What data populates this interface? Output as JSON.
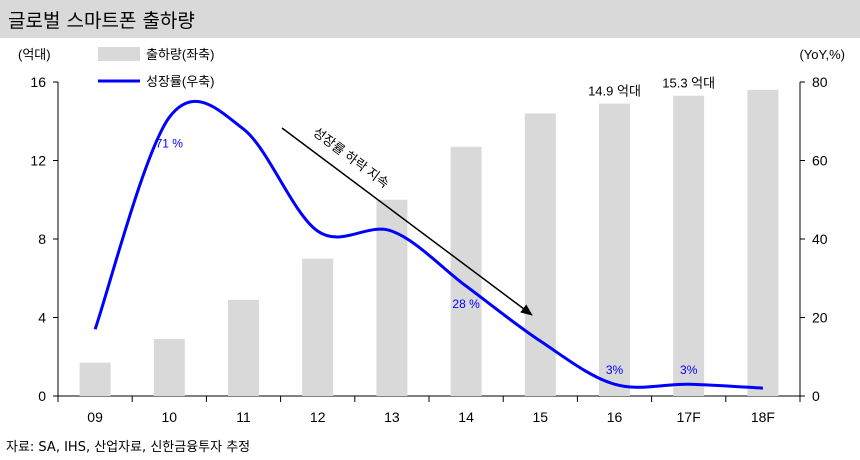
{
  "page": {
    "title": "글로벌 스마트폰 출하량",
    "source": "자료: SA, IHS, 산업자료, 신한금융투자 추정"
  },
  "chart_data": {
    "type": "bar",
    "categories": [
      "09",
      "10",
      "11",
      "12",
      "13",
      "14",
      "15",
      "16",
      "17F",
      "18F"
    ],
    "y_left_label": "(억대)",
    "y_right_label": "(YoY,%)",
    "y_left_ticks": [
      "0",
      "4",
      "8",
      "12",
      "16"
    ],
    "y_right_ticks": [
      "0",
      "20",
      "40",
      "60",
      "80"
    ],
    "ylim_left": [
      0,
      16
    ],
    "ylim_right": [
      0,
      80
    ],
    "legend_position": "top-left",
    "series": [
      {
        "name": "출하량(좌축)",
        "type": "bar",
        "axis": "left",
        "color": "#d9d9d9",
        "values": [
          1.7,
          2.9,
          4.9,
          7.0,
          10.0,
          12.7,
          14.4,
          14.9,
          15.3,
          15.6
        ]
      },
      {
        "name": "성장률(우축)",
        "type": "line",
        "axis": "right",
        "color": "#0000ff",
        "smooth": true,
        "values": [
          17,
          71,
          68,
          42,
          42,
          28,
          14,
          3,
          3,
          2
        ]
      }
    ],
    "annotations": {
      "bar_labels": [
        {
          "index": 7,
          "text": "14.9 억대"
        },
        {
          "index": 8,
          "text": "15.3 억대"
        }
      ],
      "line_labels": [
        {
          "index": 1,
          "text": "71 %"
        },
        {
          "index": 5,
          "text": "28 %"
        },
        {
          "index": 7,
          "text": "3%"
        },
        {
          "index": 8,
          "text": "3%"
        }
      ],
      "arrow_text": "성장률 하락 지속"
    }
  }
}
